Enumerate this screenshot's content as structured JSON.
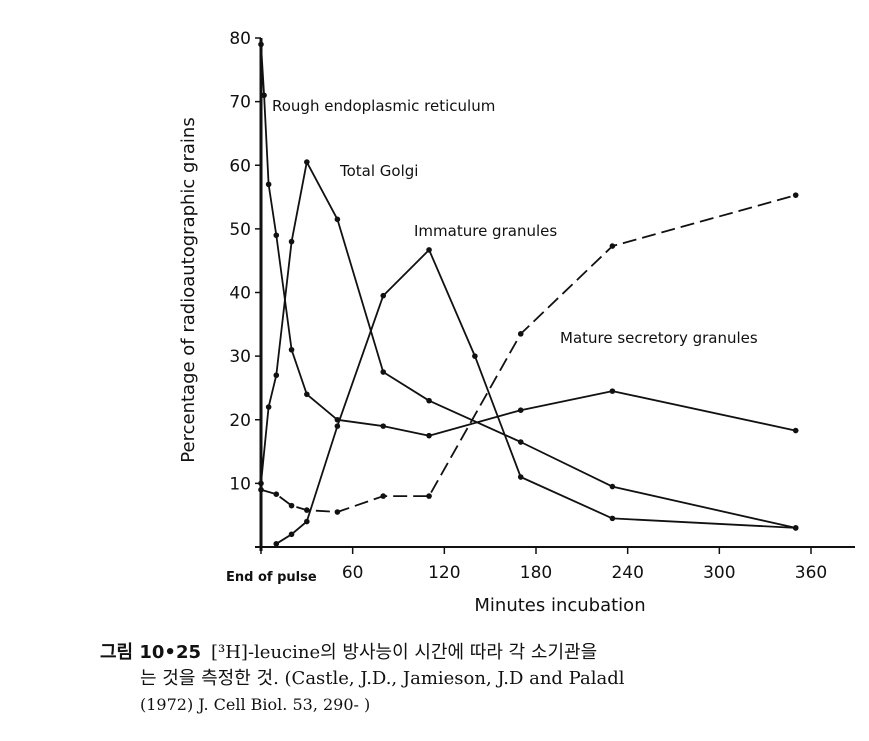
{
  "chart_data": {
    "type": "line",
    "xlabel": "Minutes incubation",
    "ylabel": "Percentage of radioautographic grains",
    "xlim": [
      -5,
      360
    ],
    "ylim": [
      0,
      80
    ],
    "x_ticks": [
      {
        "value": 0,
        "label": "End of pulse"
      },
      {
        "value": 60,
        "label": "60"
      },
      {
        "value": 120,
        "label": "120"
      },
      {
        "value": 180,
        "label": "180"
      },
      {
        "value": 240,
        "label": "240"
      },
      {
        "value": 300,
        "label": "300"
      },
      {
        "value": 360,
        "label": "360"
      }
    ],
    "y_ticks": [
      {
        "value": 10,
        "label": "10"
      },
      {
        "value": 20,
        "label": "20"
      },
      {
        "value": 30,
        "label": "30"
      },
      {
        "value": 40,
        "label": "40"
      },
      {
        "value": 50,
        "label": "50"
      },
      {
        "value": 60,
        "label": "60"
      },
      {
        "value": 70,
        "label": "70"
      },
      {
        "value": 80,
        "label": "80"
      }
    ],
    "grid": false,
    "series": [
      {
        "name": "Rough endoplasmic reticulum",
        "dashed": false,
        "x": [
          0,
          2,
          5,
          10,
          20,
          30,
          50,
          80,
          110,
          170,
          230,
          350
        ],
        "y": [
          79,
          71,
          57,
          49,
          31,
          24,
          20,
          19,
          17.5,
          21.5,
          24.5,
          18.3
        ]
      },
      {
        "name": "Total Golgi",
        "dashed": false,
        "x": [
          0,
          5,
          10,
          20,
          30,
          50,
          80,
          110,
          170,
          230,
          350
        ],
        "y": [
          10,
          22,
          27,
          48,
          60.5,
          51.5,
          27.5,
          23,
          16.5,
          9.5,
          3
        ]
      },
      {
        "name": "Immature granules",
        "dashed": false,
        "x": [
          10,
          20,
          30,
          50,
          80,
          110,
          140,
          170,
          230,
          350
        ],
        "y": [
          0.5,
          2,
          4,
          19,
          39.5,
          46.7,
          30,
          11,
          4.5,
          3
        ]
      },
      {
        "name": "Mature secretory granules",
        "dashed": true,
        "x": [
          0,
          10,
          20,
          30,
          50,
          80,
          110,
          170,
          230,
          350
        ],
        "y": [
          9,
          8.3,
          6.5,
          5.8,
          5.5,
          8,
          8,
          33.5,
          47.3,
          55.3
        ]
      }
    ],
    "annotations": [
      {
        "text": "Rough endoplasmic reticulum",
        "series": 0
      },
      {
        "text": "Total Golgi",
        "series": 1
      },
      {
        "text": "Immature granules",
        "series": 2
      },
      {
        "text": "Mature secretory granules",
        "series": 3
      }
    ]
  },
  "caption": {
    "figure_number": "그림 10•25",
    "line1": "[³H]-leucine의 방사능이 시간에 따라 각 소기관을 ",
    "line2": "는 것을 측정한 것. (Castle, J.D., Jamieson, J.D and Paladl",
    "line3": "(1972) J. Cell Biol. 53, 290- )"
  }
}
